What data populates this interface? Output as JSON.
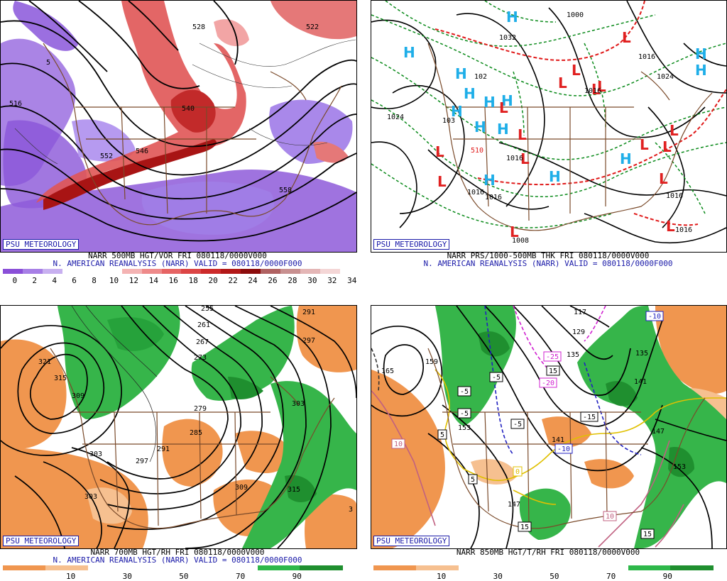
{
  "psu_label": "PSU METEOROLOGY",
  "panels": [
    {
      "id": "500mb",
      "line1": "NARR 500MB HGT/VOR FRI 080118/0000V000",
      "line2": "N. AMERICAN REANALYSIS (NARR) VALID = 080118/0000F000",
      "colorbar": {
        "ticks": [
          "0",
          "2",
          "4",
          "6",
          "8",
          "10",
          "12",
          "14",
          "16",
          "18",
          "20",
          "22",
          "24",
          "26",
          "28",
          "30",
          "32",
          "34"
        ],
        "colors": [
          "#8a4fd8",
          "#a77fe6",
          "#c8b0f0",
          "#ffffff",
          "#ffffff",
          "#ffffff",
          "#f4b3b3",
          "#ee8a8a",
          "#e66464",
          "#dc4545",
          "#cc2a2a",
          "#b21818",
          "#8c0c0c",
          "#b06262",
          "#c89090",
          "#e4b6b6",
          "#f4d6d6"
        ]
      },
      "contour_labels": [
        "528",
        "540",
        "552",
        "558",
        "516",
        "522",
        "5",
        "546"
      ]
    },
    {
      "id": "sfc",
      "line1": "NARR PRS/1000-500MB THK FRI 080118/0000V000",
      "line2": "N. AMERICAN REANALYSIS (NARR) VALID = 080118/0000F000",
      "highs": [
        "H",
        "H",
        "H",
        "H",
        "H",
        "H",
        "H",
        "H",
        "H",
        "H",
        "H",
        "H",
        "H",
        "H"
      ],
      "lows": [
        "L",
        "L",
        "L",
        "L",
        "L",
        "L",
        "L",
        "L",
        "L",
        "L",
        "L",
        "L",
        "L",
        "L",
        "L",
        "L"
      ],
      "contour_labels": [
        "1000",
        "1032",
        "1024",
        "102",
        "1016",
        "1016",
        "1016",
        "1016",
        "1024",
        "1016",
        "1008",
        "1016",
        "103",
        "510",
        "1016"
      ]
    },
    {
      "id": "700mb",
      "line1": "NARR 700MB HGT/RH FRI 080118/0000V000",
      "line2": "N. AMERICAN REANALYSIS (NARR) VALID = 080118/0000F000",
      "colorbar": {
        "ticks": [
          "10",
          "30",
          "50",
          "70",
          "90"
        ],
        "colors": [
          "#f0964f",
          "#f6c090",
          "#ffffff",
          "#ffffff",
          "#ffffff",
          "#ffffff",
          "#2eb84a",
          "#1f8f2f"
        ]
      },
      "contour_labels": [
        "321",
        "315",
        "309",
        "303",
        "297",
        "291",
        "285",
        "279",
        "273",
        "267",
        "261",
        "255",
        "303",
        "309",
        "315",
        "291",
        "297",
        "303",
        "3"
      ]
    },
    {
      "id": "850mb",
      "line1": "NARR 850MB HGT/T/RH FRI 080118/0000V000",
      "line2": "",
      "colorbar": {
        "ticks": [
          "10",
          "30",
          "50",
          "70",
          "90"
        ],
        "colors": [
          "#f0964f",
          "#f6c090",
          "#ffffff",
          "#ffffff",
          "#ffffff",
          "#ffffff",
          "#2eb84a",
          "#1f8f2f"
        ]
      },
      "contour_labels": [
        "165",
        "159",
        "153",
        "147",
        "141",
        "135",
        "129",
        "117",
        "153",
        "147",
        "141",
        "135"
      ],
      "temp_labels": [
        "-10",
        "-5",
        "-5",
        "-5",
        "-5",
        "-20",
        "-25",
        "-15",
        "-10",
        "5",
        "10",
        "15",
        "15",
        "10",
        "0",
        "5",
        "15"
      ]
    }
  ]
}
